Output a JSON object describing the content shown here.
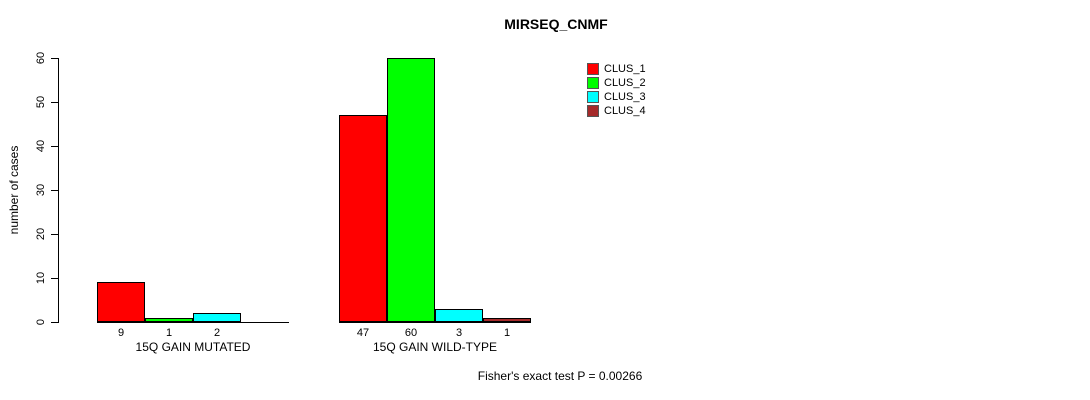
{
  "chart_data": {
    "type": "bar",
    "title": "MIRSEQ_CNMF",
    "xlabel": "",
    "ylabel": "number of cases",
    "ylim": [
      0,
      60
    ],
    "yticks": [
      0,
      10,
      20,
      30,
      40,
      50,
      60
    ],
    "grid": false,
    "legend_position": "top-right",
    "series": [
      {
        "name": "CLUS_1",
        "color": "#FF0000"
      },
      {
        "name": "CLUS_2",
        "color": "#00FF00"
      },
      {
        "name": "CLUS_3",
        "color": "#00FFFF"
      },
      {
        "name": "CLUS_4",
        "color": "#A52A2A"
      }
    ],
    "groups": [
      {
        "label": "15Q GAIN MUTATED",
        "values": [
          9,
          1,
          2,
          0
        ],
        "value_labels": [
          "9",
          "1",
          "2",
          ""
        ]
      },
      {
        "label": "15Q GAIN WILD-TYPE",
        "values": [
          47,
          60,
          3,
          1
        ],
        "value_labels": [
          "47",
          "60",
          "3",
          "1"
        ]
      }
    ],
    "annotation": "Fisher's exact test P = 0.00266"
  }
}
